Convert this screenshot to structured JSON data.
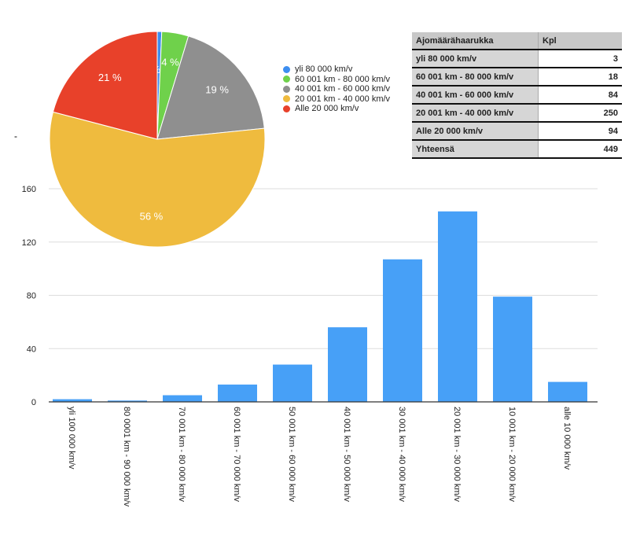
{
  "dash_text": "-",
  "chart_data": [
    {
      "type": "pie",
      "labels": [
        "yli 80 000 km/v",
        "60 001 km - 80 000 km/v",
        "40 001 km - 60 000 km/v",
        "20 001 km - 40 000 km/v",
        "Alle 20 000 km/v"
      ],
      "values": [
        3,
        18,
        84,
        250,
        94
      ],
      "percent_labels": [
        "1 %",
        "4 %",
        "19 %",
        "56 %",
        "21 %"
      ],
      "colors": [
        "#3d8ef0",
        "#6fd14b",
        "#8f8f8f",
        "#efbb3e",
        "#e8412a"
      ],
      "legend_position": "right"
    },
    {
      "type": "bar",
      "categories": [
        "yli 100 000 km/v",
        "80 0001 km - 90 000 km/v",
        "70 001 km - 80 000 km/v",
        "60 001 km - 70 000 km/v",
        "50 001 km - 60 000 km/v",
        "40 001 km - 50 000 km/v",
        "30 001 km - 40 000 km/v",
        "20 001 km - 30 000 km/v",
        "10 001 km - 20 000 km/v",
        "alle 10 000 km/v"
      ],
      "values": [
        2,
        1,
        5,
        13,
        28,
        56,
        107,
        143,
        79,
        15
      ],
      "ylim": [
        0,
        160
      ],
      "yticks": [
        0,
        40,
        80,
        120,
        160
      ],
      "color": "#47a0f7",
      "grid": true
    },
    {
      "type": "table",
      "header": [
        "Ajomäärähaarukka",
        "Kpl"
      ],
      "rows": [
        [
          "yli 80 000 km/v",
          "3"
        ],
        [
          "60 001 km - 80 000 km/v",
          "18"
        ],
        [
          "40 001 km - 60 000 km/v",
          "84"
        ],
        [
          "20 001 km - 40 000 km/v",
          "250"
        ],
        [
          "Alle 20 000 km/v",
          "94"
        ],
        [
          "Yhteensä",
          "449"
        ]
      ]
    }
  ]
}
